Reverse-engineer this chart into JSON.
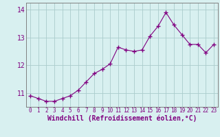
{
  "x": [
    0,
    1,
    2,
    3,
    4,
    5,
    6,
    7,
    8,
    9,
    10,
    11,
    12,
    13,
    14,
    15,
    16,
    17,
    18,
    19,
    20,
    21,
    22,
    23
  ],
  "y": [
    10.9,
    10.8,
    10.7,
    10.7,
    10.8,
    10.9,
    11.1,
    11.4,
    11.7,
    11.85,
    12.05,
    12.65,
    12.55,
    12.5,
    12.55,
    13.05,
    13.4,
    13.9,
    13.45,
    13.1,
    12.75,
    12.75,
    12.45,
    12.75
  ],
  "line_color": "#800080",
  "marker": "+",
  "marker_size": 4,
  "background_color": "#d8f0f0",
  "grid_color": "#aacccc",
  "xlabel": "Windchill (Refroidissement éolien,°C)",
  "xlabel_color": "#800080",
  "xlim": [
    -0.5,
    23.5
  ],
  "ylim": [
    10.5,
    14.25
  ],
  "yticks": [
    11,
    12,
    13,
    14
  ],
  "xtick_labels": [
    "0",
    "1",
    "2",
    "3",
    "4",
    "5",
    "6",
    "7",
    "8",
    "9",
    "10",
    "11",
    "12",
    "13",
    "14",
    "15",
    "16",
    "17",
    "18",
    "19",
    "20",
    "21",
    "22",
    "23"
  ],
  "tick_color": "#800080",
  "tick_fontsize": 5.5,
  "xlabel_fontsize": 7.0,
  "spine_color": "#808080",
  "grid_linewidth": 0.6
}
